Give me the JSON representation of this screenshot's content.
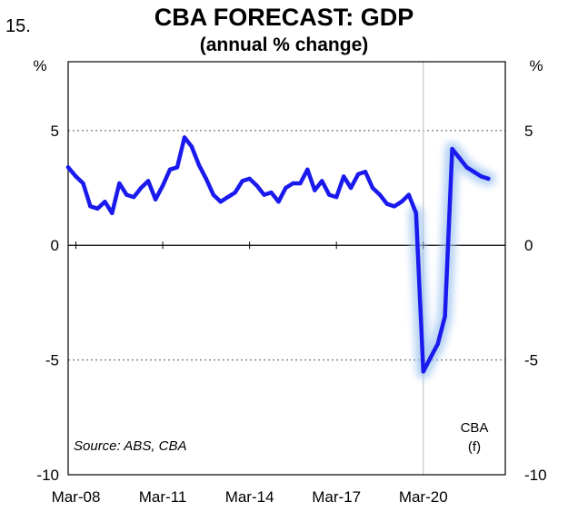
{
  "figure_number": "15.",
  "chart_data": {
    "type": "line",
    "title": "CBA FORECAST: GDP",
    "subtitle": "(annual % change)",
    "ylabel_left": "%",
    "ylabel_right": "%",
    "ylim": [
      -10,
      8
    ],
    "yticks": [
      5,
      0,
      -5,
      -10
    ],
    "ytick_labels": [
      "5",
      "0",
      "-5",
      "-10"
    ],
    "xlim": [
      2007.9,
      2023.0
    ],
    "xticks": [
      2008.167,
      2011.167,
      2014.167,
      2017.167,
      2020.167
    ],
    "xtick_labels": [
      "Mar-08",
      "Mar-11",
      "Mar-14",
      "Mar-17",
      "Mar-20"
    ],
    "forecast_start": 2020.167,
    "source": "Source: ABS, CBA",
    "forecast_label": [
      "CBA",
      "(f)"
    ],
    "colors": {
      "line": "#1a1aee",
      "glow": "#9ec4f0",
      "forecast_divider": "#c8c8c8"
    },
    "series": [
      {
        "name": "GDP annual % change",
        "x": [
          2007.9,
          2008.167,
          2008.417,
          2008.667,
          2008.917,
          2009.167,
          2009.417,
          2009.667,
          2009.917,
          2010.167,
          2010.417,
          2010.667,
          2010.917,
          2011.167,
          2011.417,
          2011.667,
          2011.917,
          2012.167,
          2012.417,
          2012.667,
          2012.917,
          2013.167,
          2013.417,
          2013.667,
          2013.917,
          2014.167,
          2014.417,
          2014.667,
          2014.917,
          2015.167,
          2015.417,
          2015.667,
          2015.917,
          2016.167,
          2016.417,
          2016.667,
          2016.917,
          2017.167,
          2017.417,
          2017.667,
          2017.917,
          2018.167,
          2018.417,
          2018.667,
          2018.917,
          2019.167,
          2019.417,
          2019.667,
          2019.917,
          2020.167,
          2020.417,
          2020.667,
          2020.917,
          2021.167,
          2021.417,
          2021.667,
          2021.917,
          2022.167,
          2022.417
        ],
        "values": [
          3.4,
          3.0,
          2.7,
          1.7,
          1.6,
          1.9,
          1.4,
          2.7,
          2.2,
          2.1,
          2.5,
          2.8,
          2.0,
          2.6,
          3.3,
          3.4,
          4.7,
          4.3,
          3.5,
          2.9,
          2.2,
          1.9,
          2.1,
          2.3,
          2.8,
          2.9,
          2.6,
          2.2,
          2.3,
          1.9,
          2.5,
          2.7,
          2.7,
          3.3,
          2.4,
          2.8,
          2.2,
          2.1,
          3.0,
          2.5,
          3.1,
          3.2,
          2.5,
          2.2,
          1.8,
          1.7,
          1.9,
          2.2,
          1.4,
          -5.5,
          -4.9,
          -4.3,
          -3.1,
          4.2,
          3.8,
          3.4,
          3.2,
          3.0,
          2.9
        ]
      }
    ]
  }
}
